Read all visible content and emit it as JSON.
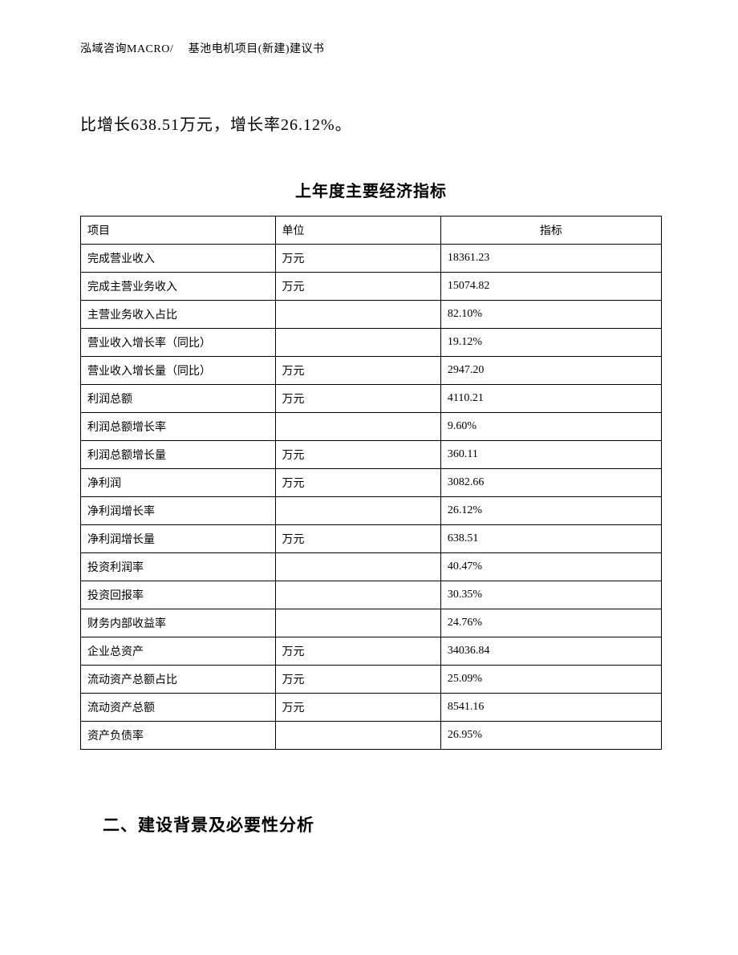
{
  "header_text": "泓域咨询MACRO/　 基池电机项目(新建)建议书",
  "intro_text": "比增长638.51万元，增长率26.12%。",
  "table_title": "上年度主要经济指标",
  "table": {
    "columns": [
      "项目",
      "单位",
      "指标"
    ],
    "rows": [
      [
        "完成营业收入",
        "万元",
        "18361.23"
      ],
      [
        "完成主营业务收入",
        "万元",
        "15074.82"
      ],
      [
        "主营业务收入占比",
        "",
        "82.10%"
      ],
      [
        "营业收入增长率（同比）",
        "",
        "19.12%"
      ],
      [
        "营业收入增长量（同比）",
        "万元",
        "2947.20"
      ],
      [
        "利润总额",
        "万元",
        "4110.21"
      ],
      [
        "利润总额增长率",
        "",
        "9.60%"
      ],
      [
        "利润总额增长量",
        "万元",
        "360.11"
      ],
      [
        "净利润",
        "万元",
        "3082.66"
      ],
      [
        "净利润增长率",
        "",
        "26.12%"
      ],
      [
        "净利润增长量",
        "万元",
        "638.51"
      ],
      [
        "投资利润率",
        "",
        "40.47%"
      ],
      [
        "投资回报率",
        "",
        "30.35%"
      ],
      [
        "财务内部收益率",
        "",
        "24.76%"
      ],
      [
        "企业总资产",
        "万元",
        "34036.84"
      ],
      [
        "流动资产总额占比",
        "万元",
        "25.09%"
      ],
      [
        "流动资产总额",
        "万元",
        "8541.16"
      ],
      [
        "资产负债率",
        "",
        "26.95%"
      ]
    ]
  },
  "section_heading": "二、建设背景及必要性分析"
}
